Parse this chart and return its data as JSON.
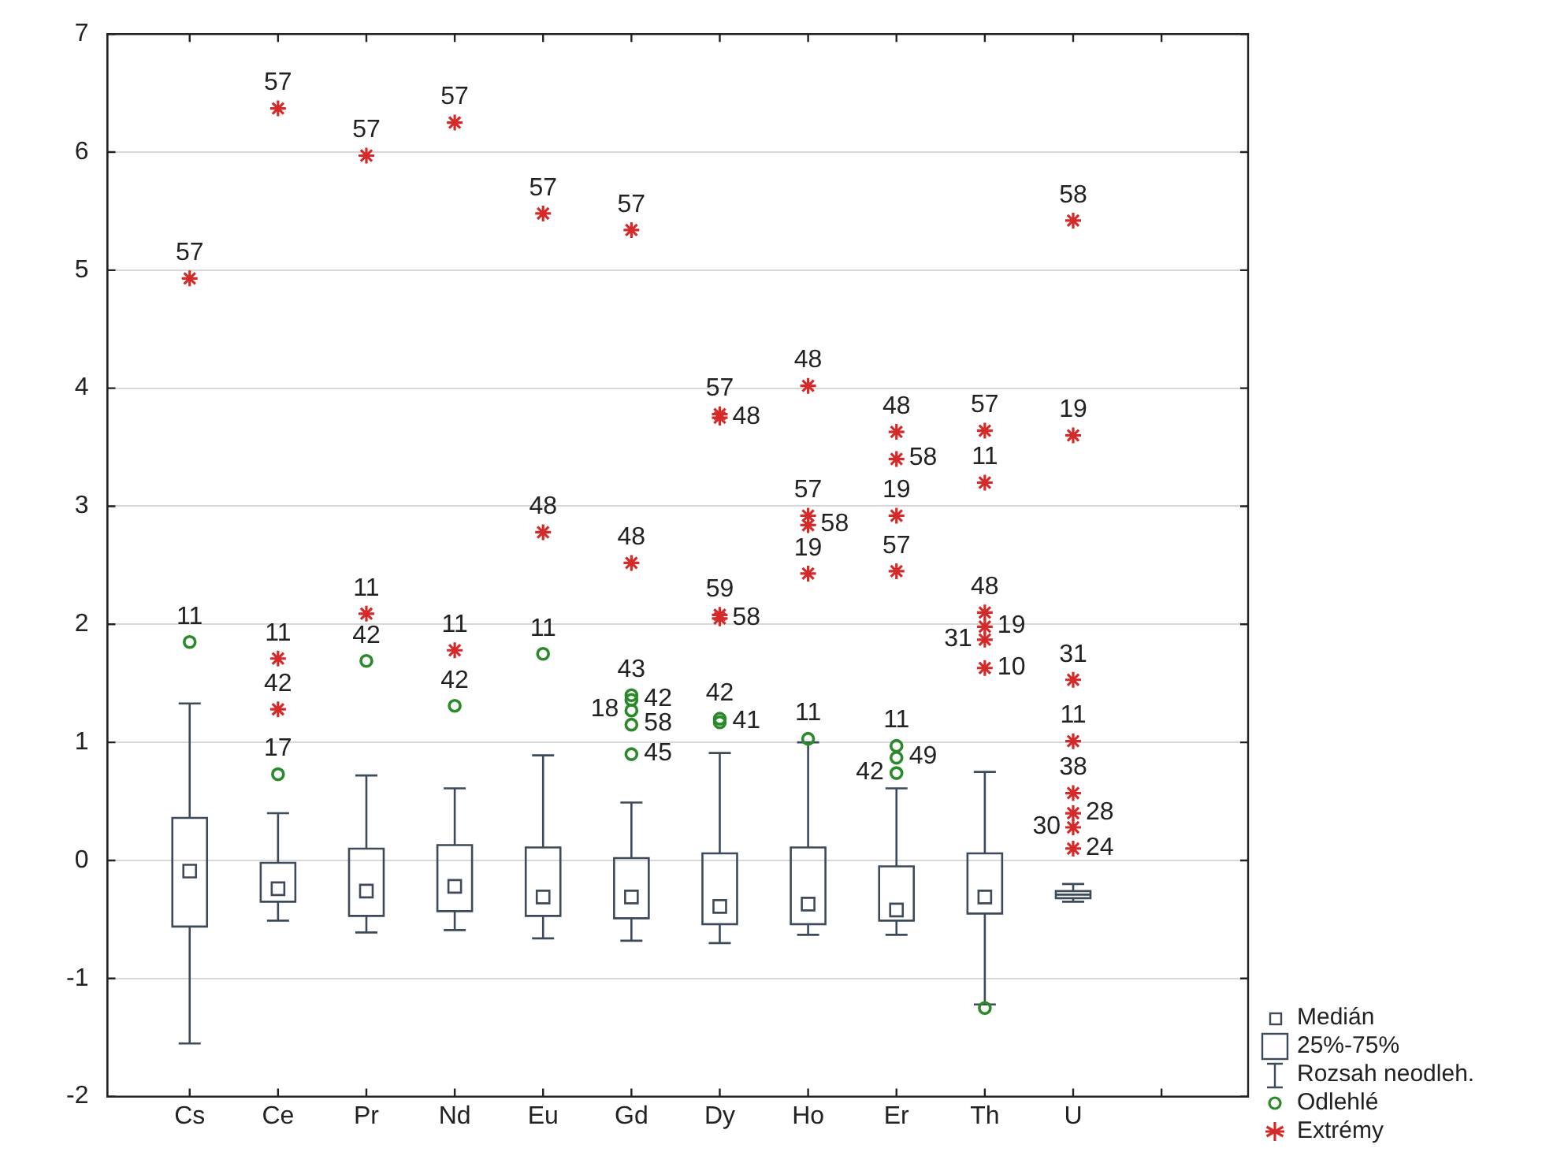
{
  "chart_data": {
    "type": "box",
    "color": "#3c4a5a",
    "categories": [
      "Cs",
      "Ce",
      "Pr",
      "Nd",
      "Eu",
      "Gd",
      "Dy",
      "Ho",
      "Er",
      "Th",
      "U",
      null
    ],
    "boxes": [
      {
        "low": -1.55,
        "q1": -0.56,
        "median": -0.09,
        "q3": 0.36,
        "high": 1.33
      },
      {
        "low": -0.51,
        "q1": -0.35,
        "median": -0.24,
        "q3": -0.02,
        "high": 0.4
      },
      {
        "low": -0.61,
        "q1": -0.47,
        "median": -0.26,
        "q3": 0.1,
        "high": 0.72
      },
      {
        "low": -0.59,
        "q1": -0.43,
        "median": -0.22,
        "q3": 0.13,
        "high": 0.61
      },
      {
        "low": -0.66,
        "q1": -0.47,
        "median": -0.31,
        "q3": 0.11,
        "high": 0.89
      },
      {
        "low": -0.68,
        "q1": -0.49,
        "median": -0.31,
        "q3": 0.02,
        "high": 0.49
      },
      {
        "low": -0.7,
        "q1": -0.54,
        "median": -0.39,
        "q3": 0.06,
        "high": 0.91
      },
      {
        "low": -0.63,
        "q1": -0.54,
        "median": -0.37,
        "q3": 0.11,
        "high": 1.0
      },
      {
        "low": -0.63,
        "q1": -0.51,
        "median": -0.42,
        "q3": -0.05,
        "high": 0.61
      },
      {
        "low": -1.22,
        "q1": -0.45,
        "median": -0.31,
        "q3": 0.06,
        "high": 0.75
      },
      {
        "low": -0.35,
        "q1": -0.32,
        "median": -0.29,
        "q3": -0.26,
        "high": -0.2
      },
      null
    ],
    "series": [
      {
        "type": "scatter",
        "name": "Odlehlé",
        "color": "#2a8a2a",
        "marker": "circle",
        "x": [
          "Cs",
          "Ce",
          "Pr",
          "Nd",
          "Eu",
          "Gd",
          "Gd",
          "Gd",
          "Gd",
          "Gd",
          "Dy",
          "Dy",
          "Ho",
          "Er",
          "Er",
          "Er",
          "Th"
        ],
        "values": [
          1.85,
          0.73,
          1.69,
          1.31,
          1.75,
          1.4,
          1.36,
          1.27,
          1.15,
          0.9,
          1.2,
          1.17,
          1.03,
          0.97,
          0.87,
          0.74,
          -1.25
        ]
      },
      {
        "type": "scatter",
        "name": "Extrémy",
        "color": "#d42a2a",
        "marker": "cross",
        "x": [
          "Cs",
          "Ce",
          "Ce",
          "Ce",
          "Pr",
          "Pr",
          "Nd",
          "Nd",
          "Eu",
          "Eu",
          "Gd",
          "Gd",
          "Dy",
          "Dy",
          "Dy",
          "Dy",
          "Ho",
          "Ho",
          "Ho",
          "Ho",
          "Er",
          "Er",
          "Er",
          "Er",
          "Th",
          "Th",
          "Th",
          "Th",
          "Th",
          "Th",
          "U",
          "U",
          "U",
          "U",
          "U",
          "U",
          "U",
          "U"
        ],
        "values": [
          4.93,
          6.37,
          1.71,
          1.28,
          5.97,
          2.09,
          6.25,
          1.78,
          5.48,
          2.78,
          5.34,
          2.52,
          3.78,
          3.75,
          2.08,
          2.05,
          4.02,
          2.92,
          2.84,
          2.43,
          3.63,
          3.4,
          2.92,
          2.45,
          3.64,
          3.2,
          2.1,
          1.98,
          1.87,
          1.63,
          5.42,
          3.6,
          1.53,
          1.01,
          0.57,
          0.4,
          0.28,
          0.1
        ]
      }
    ],
    "ylim": [
      -2,
      7
    ],
    "yticks": [
      -2,
      -1,
      0,
      1,
      2,
      3,
      4,
      5,
      6,
      7
    ],
    "grid": "y",
    "legend": "bottom right",
    "annotations": [
      "Medián",
      "25%-75%",
      "Rozsah neodleh.",
      {
        "text": "11",
        "x": "Cs",
        "y": 1.85
      },
      {
        "text": "17",
        "x": "Ce",
        "y": 0.73
      },
      {
        "text": "42",
        "x": "Pr",
        "y": 1.69
      },
      {
        "text": "42",
        "x": "Nd",
        "y": 1.31
      },
      {
        "text": "11",
        "x": "Eu",
        "y": 1.75
      },
      {
        "text": "43",
        "x": "Gd",
        "y": 1.4
      },
      {
        "text": "42",
        "x": "Gd",
        "y": 1.36
      },
      {
        "text": "18",
        "x": "Gd",
        "y": 1.27
      },
      {
        "text": "58",
        "x": "Gd",
        "y": 1.15
      },
      {
        "text": "45",
        "x": "Gd",
        "y": 0.9
      },
      {
        "text": "42",
        "x": "Dy",
        "y": 1.2
      },
      {
        "text": "41",
        "x": "Dy",
        "y": 1.17
      },
      {
        "text": "11",
        "x": "Ho",
        "y": 1.03
      },
      {
        "text": "11",
        "x": "Er",
        "y": 0.97
      },
      {
        "text": "49",
        "x": "Er",
        "y": 0.87
      },
      {
        "text": "42",
        "x": "Er",
        "y": 0.74
      },
      {
        "text": "57",
        "x": "Cs",
        "y": 4.93
      },
      {
        "text": "57",
        "x": "Ce",
        "y": 6.37
      },
      {
        "text": "11",
        "x": "Ce",
        "y": 1.71
      },
      {
        "text": "42",
        "x": "Ce",
        "y": 1.28
      },
      {
        "text": "57",
        "x": "Pr",
        "y": 5.97
      },
      {
        "text": "11",
        "x": "Pr",
        "y": 2.09
      },
      {
        "text": "57",
        "x": "Nd",
        "y": 6.25
      },
      {
        "text": "11",
        "x": "Nd",
        "y": 1.78
      },
      {
        "text": "57",
        "x": "Eu",
        "y": 5.48
      },
      {
        "text": "48",
        "x": "Eu",
        "y": 2.78
      },
      {
        "text": "57",
        "x": "Gd",
        "y": 5.34
      },
      {
        "text": "48",
        "x": "Gd",
        "y": 2.52
      },
      {
        "text": "57",
        "x": "Dy",
        "y": 3.78
      },
      {
        "text": "48",
        "x": "Dy",
        "y": 3.75
      },
      {
        "text": "59",
        "x": "Dy",
        "y": 2.08
      },
      {
        "text": "58",
        "x": "Dy",
        "y": 2.05
      },
      {
        "text": "48",
        "x": "Ho",
        "y": 4.02
      },
      {
        "text": "57",
        "x": "Ho",
        "y": 2.92
      },
      {
        "text": "58",
        "x": "Ho",
        "y": 2.84
      },
      {
        "text": "19",
        "x": "Ho",
        "y": 2.43
      },
      {
        "text": "48",
        "x": "Er",
        "y": 3.63
      },
      {
        "text": "58",
        "x": "Er",
        "y": 3.4
      },
      {
        "text": "19",
        "x": "Er",
        "y": 2.92
      },
      {
        "text": "57",
        "x": "Er",
        "y": 2.45
      },
      {
        "text": "57",
        "x": "Th",
        "y": 3.64
      },
      {
        "text": "11",
        "x": "Th",
        "y": 3.2
      },
      {
        "text": "48",
        "x": "Th",
        "y": 2.1
      },
      {
        "text": "19",
        "x": "Th",
        "y": 1.98
      },
      {
        "text": "31",
        "x": "Th",
        "y": 1.87
      },
      {
        "text": "10",
        "x": "Th",
        "y": 1.63
      },
      {
        "text": "58",
        "x": "U",
        "y": 5.42
      },
      {
        "text": "19",
        "x": "U",
        "y": 3.6
      },
      {
        "text": "31",
        "x": "U",
        "y": 1.53
      },
      {
        "text": "11",
        "x": "U",
        "y": 1.01
      },
      {
        "text": "38",
        "x": "U",
        "y": 0.57
      },
      {
        "text": "28",
        "x": "U",
        "y": 0.4
      },
      {
        "text": "30",
        "x": "U",
        "y": 0.28
      },
      {
        "text": "24",
        "x": "U",
        "y": 0.1
      }
    ]
  }
}
